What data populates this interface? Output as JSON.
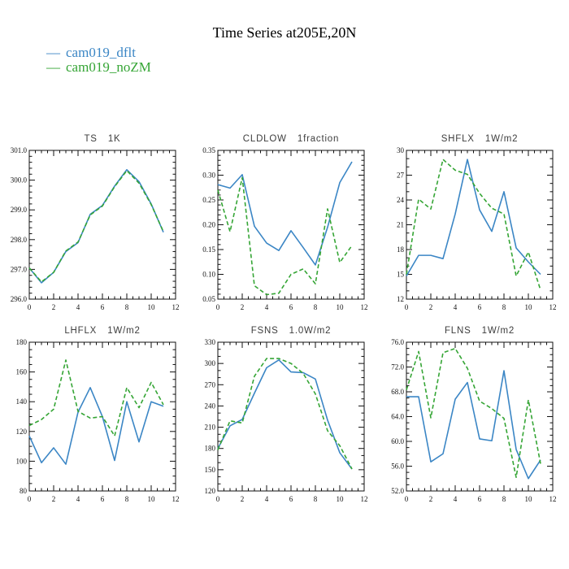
{
  "page_title": "Time Series at205E,20N",
  "legend": {
    "series": [
      {
        "label": "cam019_dflt",
        "color": "#3b86c5",
        "style": "solid"
      },
      {
        "label": "cam019_noZM",
        "color": "#35a535",
        "style": "dashed"
      }
    ],
    "dash_glyph": "—"
  },
  "colors": {
    "axis": "#111111",
    "cam019_dflt": "#3b86c5",
    "cam019_noZM": "#35a535",
    "background": "#ffffff"
  },
  "chart_data": [
    {
      "type": "line",
      "title": "TS",
      "units": "1K",
      "x": [
        0,
        1,
        2,
        3,
        4,
        5,
        6,
        7,
        8,
        9,
        10,
        11
      ],
      "xlim": [
        0,
        12
      ],
      "xticks": [
        0,
        2,
        4,
        6,
        8,
        10,
        12
      ],
      "x_minor_div": 4,
      "ylim": [
        296.0,
        301.0
      ],
      "ytick_step": 1.0,
      "y_decimals": 1,
      "y_minor_div": 5,
      "grid": false,
      "legend_position": "none",
      "series": [
        {
          "name": "cam019_dflt",
          "values": [
            297.05,
            296.55,
            296.9,
            297.6,
            297.9,
            298.85,
            299.15,
            299.8,
            300.35,
            299.95,
            299.2,
            298.25
          ]
        },
        {
          "name": "cam019_noZM",
          "values": [
            297.05,
            296.58,
            296.9,
            297.62,
            297.92,
            298.83,
            299.13,
            299.78,
            300.32,
            299.9,
            299.18,
            298.27
          ]
        }
      ]
    },
    {
      "type": "line",
      "title": "CLDLOW",
      "units": "1fraction",
      "x": [
        0,
        1,
        2,
        3,
        4,
        5,
        6,
        7,
        8,
        9,
        10,
        11
      ],
      "xlim": [
        0,
        12
      ],
      "xticks": [
        0,
        2,
        4,
        6,
        8,
        10,
        12
      ],
      "x_minor_div": 4,
      "ylim": [
        0.05,
        0.35
      ],
      "ytick_step": 0.05,
      "y_decimals": 2,
      "y_minor_div": 5,
      "grid": false,
      "legend_position": "none",
      "series": [
        {
          "name": "cam019_dflt",
          "values": [
            0.281,
            0.274,
            0.301,
            0.197,
            0.163,
            0.148,
            0.188,
            0.154,
            0.119,
            0.195,
            0.285,
            0.327
          ]
        },
        {
          "name": "cam019_noZM",
          "values": [
            0.27,
            0.186,
            0.295,
            0.077,
            0.059,
            0.062,
            0.1,
            0.111,
            0.081,
            0.232,
            0.124,
            0.158
          ]
        }
      ]
    },
    {
      "type": "line",
      "title": "SHFLX",
      "units": "1W/m2",
      "x": [
        0,
        1,
        2,
        3,
        4,
        5,
        6,
        7,
        8,
        9,
        10,
        11
      ],
      "xlim": [
        0,
        12
      ],
      "xticks": [
        0,
        2,
        4,
        6,
        8,
        10,
        12
      ],
      "x_minor_div": 4,
      "ylim": [
        12,
        30
      ],
      "ytick_step": 3,
      "y_decimals": 0,
      "y_minor_div": 3,
      "grid": false,
      "legend_position": "none",
      "series": [
        {
          "name": "cam019_dflt",
          "values": [
            14.8,
            17.3,
            17.3,
            16.9,
            22.3,
            28.9,
            22.8,
            20.2,
            25.0,
            18.2,
            16.5,
            15.0
          ]
        },
        {
          "name": "cam019_noZM",
          "values": [
            15.0,
            24.1,
            22.9,
            28.9,
            27.6,
            27.1,
            24.8,
            23.0,
            22.3,
            14.8,
            17.7,
            13.1
          ]
        }
      ]
    },
    {
      "type": "line",
      "title": "LHFLX",
      "units": "1W/m2",
      "x": [
        0,
        1,
        2,
        3,
        4,
        5,
        6,
        7,
        8,
        9,
        10,
        11
      ],
      "xlim": [
        0,
        12
      ],
      "xticks": [
        0,
        2,
        4,
        6,
        8,
        10,
        12
      ],
      "x_minor_div": 4,
      "ylim": [
        80,
        180
      ],
      "ytick_step": 20,
      "y_decimals": 0,
      "y_minor_div": 4,
      "grid": false,
      "legend_position": "none",
      "series": [
        {
          "name": "cam019_dflt",
          "values": [
            117,
            99,
            109,
            98,
            133,
            149.5,
            130,
            100.5,
            140,
            113,
            140,
            137
          ]
        },
        {
          "name": "cam019_noZM",
          "values": [
            124,
            128,
            135,
            168,
            133.5,
            129,
            130,
            117,
            149.5,
            136,
            153,
            138
          ]
        }
      ]
    },
    {
      "type": "line",
      "title": "FSNS",
      "units": "1.0W/m2",
      "x": [
        0,
        1,
        2,
        3,
        4,
        5,
        6,
        7,
        8,
        9,
        10,
        11
      ],
      "xlim": [
        0,
        12
      ],
      "xticks": [
        0,
        2,
        4,
        6,
        8,
        10,
        12
      ],
      "x_minor_div": 4,
      "ylim": [
        120,
        330
      ],
      "ytick_step": 30,
      "y_decimals": 0,
      "y_minor_div": 3,
      "grid": false,
      "legend_position": "none",
      "series": [
        {
          "name": "cam019_dflt",
          "values": [
            180,
            212,
            221,
            258,
            294,
            305,
            288,
            287,
            278,
            220,
            174,
            151
          ]
        },
        {
          "name": "cam019_noZM",
          "values": [
            178,
            219,
            216,
            282,
            307,
            307,
            300,
            286,
            257,
            205,
            184,
            151
          ]
        }
      ]
    },
    {
      "type": "line",
      "title": "FLNS",
      "units": "1W/m2",
      "x": [
        0,
        1,
        2,
        3,
        4,
        5,
        6,
        7,
        8,
        9,
        10,
        11
      ],
      "xlim": [
        0,
        12
      ],
      "xticks": [
        0,
        2,
        4,
        6,
        8,
        10,
        12
      ],
      "x_minor_div": 4,
      "ylim": [
        52.0,
        76.0
      ],
      "ytick_step": 4.0,
      "y_decimals": 1,
      "y_minor_div": 4,
      "grid": false,
      "legend_position": "none",
      "series": [
        {
          "name": "cam019_dflt",
          "values": [
            67.2,
            67.2,
            56.7,
            58.0,
            66.8,
            69.5,
            60.4,
            60.1,
            71.4,
            58.7,
            54.0,
            57.0
          ]
        },
        {
          "name": "cam019_noZM",
          "values": [
            68.3,
            74.5,
            63.8,
            74.3,
            75.0,
            71.8,
            66.5,
            65.3,
            63.7,
            54.2,
            66.7,
            56.4
          ]
        }
      ]
    }
  ]
}
